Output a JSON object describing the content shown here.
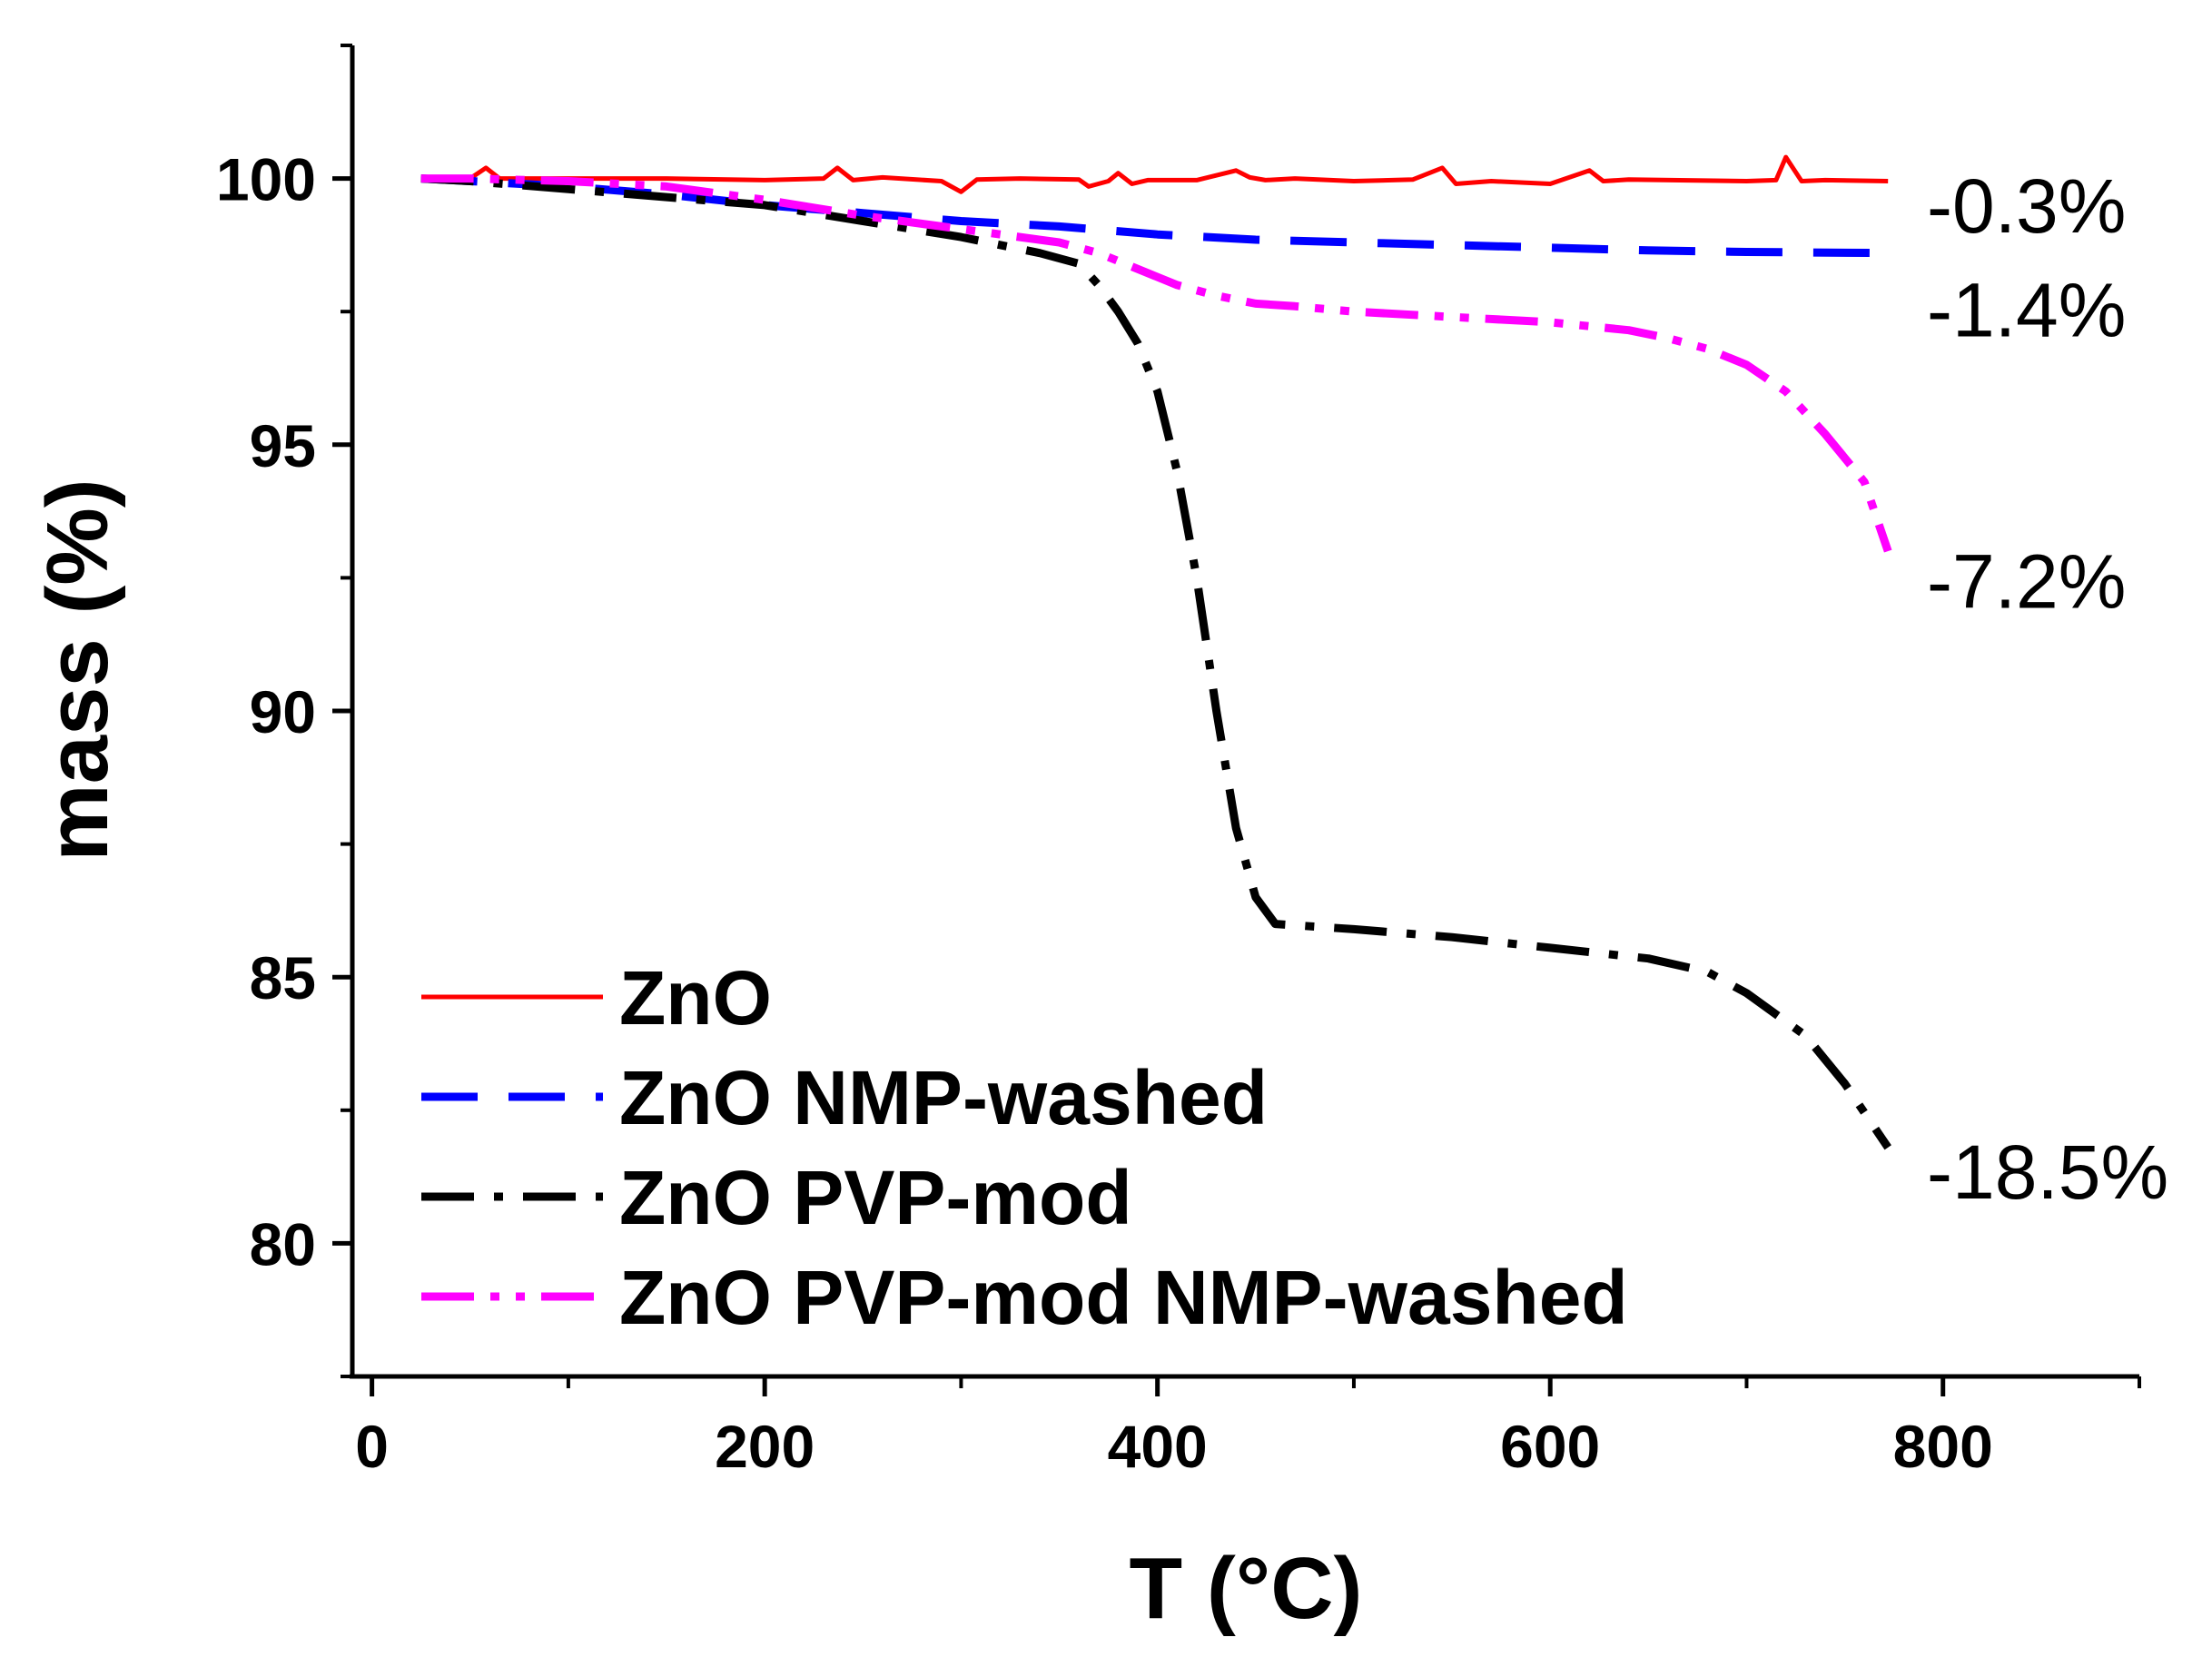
{
  "chart_data": {
    "type": "line",
    "title": "",
    "xlabel": "T (°C)",
    "ylabel": "mass (%)",
    "xlim": [
      -10,
      900
    ],
    "ylim": [
      77.5,
      102.5
    ],
    "xticks": [
      0,
      200,
      400,
      600,
      800
    ],
    "yticks": [
      80,
      85,
      90,
      95,
      100
    ],
    "xminor": [
      100,
      300,
      500,
      700,
      900
    ],
    "yminor": [
      77.5,
      82.5,
      87.5,
      92.5,
      97.5,
      102.5
    ],
    "grid": false,
    "legend_position": "bottom-left",
    "series": [
      {
        "name": "ZnO",
        "color": "#ff0000",
        "style": "solid",
        "x": [
          25,
          50,
          58,
          65,
          100,
          150,
          200,
          230,
          237,
          245,
          260,
          290,
          300,
          308,
          330,
          360,
          365,
          375,
          380,
          387,
          395,
          420,
          440,
          447,
          455,
          470,
          500,
          530,
          545,
          552,
          570,
          600,
          620,
          627,
          640,
          700,
          715,
          720,
          728,
          740,
          772
        ],
        "y": [
          100,
          100,
          100.2,
          100,
          100,
          100,
          99.97,
          100,
          100.2,
          99.97,
          100.02,
          99.95,
          99.75,
          99.98,
          100,
          99.98,
          99.85,
          99.95,
          100.1,
          99.9,
          99.97,
          99.97,
          100.15,
          100.02,
          99.97,
          100,
          99.95,
          99.98,
          100.2,
          99.9,
          99.95,
          99.9,
          100.15,
          99.95,
          99.98,
          99.95,
          99.97,
          100.4,
          99.95,
          99.97,
          99.95
        ]
      },
      {
        "name": "ZnO NMP-washed",
        "color": "#0000ff",
        "style": "dashed",
        "x": [
          25,
          50,
          100,
          150,
          200,
          250,
          300,
          350,
          400,
          450,
          500,
          550,
          600,
          650,
          700,
          772
        ],
        "y": [
          100,
          99.95,
          99.85,
          99.7,
          99.5,
          99.35,
          99.2,
          99.1,
          98.95,
          98.85,
          98.8,
          98.75,
          98.7,
          98.65,
          98.62,
          98.6
        ]
      },
      {
        "name": "ZnO PVP-mod",
        "color": "#000000",
        "style": "dash-dot",
        "x": [
          25,
          50,
          100,
          150,
          200,
          250,
          300,
          340,
          360,
          370,
          380,
          390,
          400,
          410,
          420,
          430,
          440,
          450,
          460,
          480,
          500,
          550,
          600,
          650,
          680,
          700,
          730,
          750,
          772
        ],
        "y": [
          100,
          99.95,
          99.8,
          99.65,
          99.5,
          99.2,
          98.9,
          98.6,
          98.4,
          98.0,
          97.5,
          96.9,
          96.0,
          94.5,
          92.5,
          90.0,
          87.8,
          86.5,
          86.0,
          85.95,
          85.9,
          85.75,
          85.55,
          85.35,
          85.1,
          84.7,
          83.9,
          83.0,
          81.8
        ]
      },
      {
        "name": "ZnO PVP-mod NMP-washed",
        "color": "#ff00ff",
        "style": "dash-dot-dot",
        "x": [
          25,
          50,
          100,
          150,
          200,
          250,
          300,
          350,
          370,
          390,
          410,
          430,
          450,
          470,
          500,
          550,
          600,
          640,
          660,
          680,
          700,
          720,
          740,
          760,
          772
        ],
        "y": [
          100,
          100,
          99.95,
          99.85,
          99.6,
          99.3,
          99.05,
          98.8,
          98.6,
          98.3,
          98.0,
          97.8,
          97.65,
          97.6,
          97.5,
          97.4,
          97.3,
          97.15,
          97.0,
          96.8,
          96.5,
          96.0,
          95.2,
          94.3,
          93.0
        ]
      }
    ],
    "annotations": [
      {
        "text": "-0.3%",
        "y": 99.5
      },
      {
        "text": "-1.4%",
        "y": 97.55
      },
      {
        "text": "-7.2%",
        "y": 92.45
      },
      {
        "text": "-18.5%",
        "y": 81.35
      }
    ]
  }
}
